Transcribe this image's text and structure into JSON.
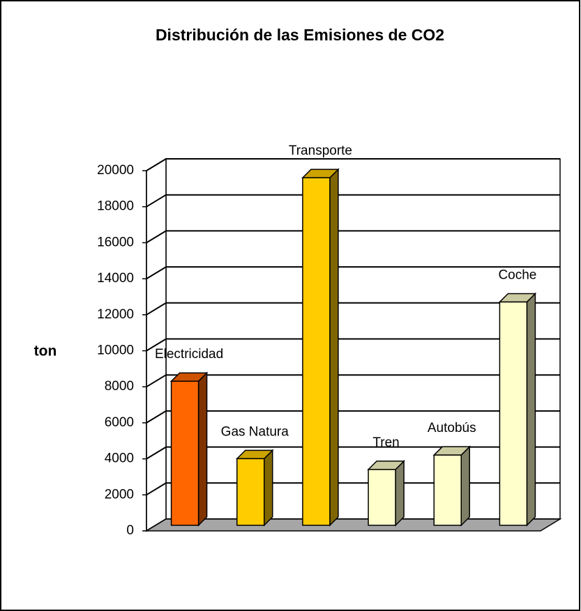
{
  "chart_data": {
    "type": "bar3d",
    "title": "Distribución de las Emisiones de CO2",
    "y_label": "ton",
    "categories": [
      "Electricidad",
      "Gas Natura",
      "Transporte",
      "Tren",
      "Autobús",
      "Coche"
    ],
    "values": [
      8000,
      3700,
      19300,
      3100,
      3900,
      12400
    ],
    "colors": [
      "#ff6600",
      "#ffcc00",
      "#ffcc00",
      "#ffffcc",
      "#ffffcc",
      "#ffffcc"
    ],
    "ylim": [
      0,
      20000
    ],
    "yticks": [
      0,
      2000,
      4000,
      6000,
      8000,
      10000,
      12000,
      14000,
      16000,
      18000,
      20000
    ],
    "grid": true
  }
}
